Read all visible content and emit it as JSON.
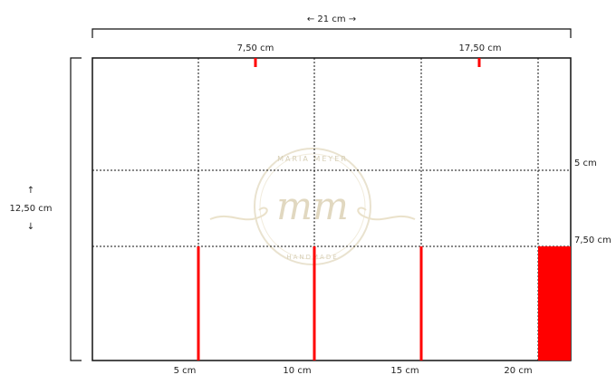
{
  "width_label": "← 21 cm →",
  "height_label_arrow_up": "↑",
  "height_label": "12,50 cm",
  "height_label_arrow_down": "↓",
  "top_marks": [
    "7,50 cm",
    "17,50 cm"
  ],
  "right_marks": [
    "5 cm",
    "7,50 cm"
  ],
  "bottom_marks": [
    "5 cm",
    "10 cm",
    "15 cm",
    "20 cm"
  ],
  "watermark": {
    "monogram": "mm",
    "arc_top": "MARIA MEYER",
    "arc_bottom": "HANDMADE"
  },
  "colors": {
    "accent": "#ff0000",
    "lines": "#111111",
    "watermark": "#c9b98d"
  }
}
